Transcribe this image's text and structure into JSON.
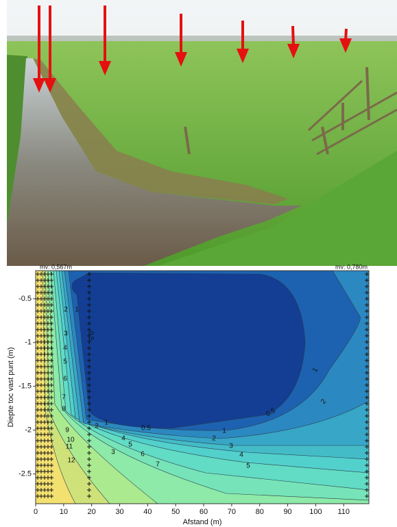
{
  "chart_data": {
    "type": "contour",
    "annotation_left": "mv: 0,567m",
    "annotation_right": "mv: 0,780m",
    "xlabel": "Afstand (m)",
    "ylabel": "Diepte toc vast punt (m)",
    "xlim": [
      0,
      119
    ],
    "ylim": [
      -2.84,
      -0.18
    ],
    "xticks": [
      0,
      10,
      20,
      30,
      40,
      50,
      60,
      70,
      80,
      90,
      100,
      110
    ],
    "yticks": [
      -0.5,
      -1,
      -1.5,
      -2,
      -2.5
    ],
    "contour_labels": [
      2,
      1,
      0.5,
      3,
      4,
      5,
      6,
      7,
      8,
      9,
      10,
      11,
      12,
      1,
      2,
      3,
      4,
      5,
      0.5,
      1,
      2,
      3,
      4,
      5,
      6,
      7,
      0.5,
      1,
      2
    ]
  }
}
